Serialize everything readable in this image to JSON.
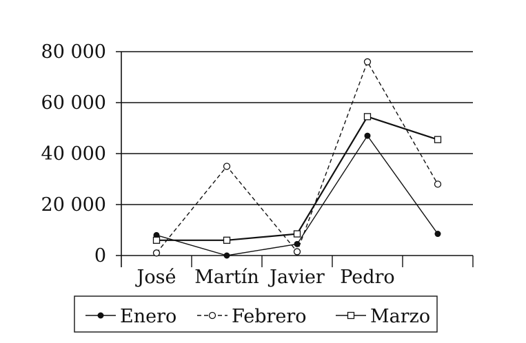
{
  "chart_data": {
    "type": "line",
    "title": "",
    "xlabel": "",
    "ylabel": "",
    "categories": [
      "José",
      "Martín",
      "Javier",
      "Pedro",
      ""
    ],
    "y_ticks": [
      "0",
      "20 000",
      "40 000",
      "60 000",
      "80 000"
    ],
    "ylim": [
      0,
      80000
    ],
    "grid": "horizontal",
    "legend_position": "bottom",
    "series": [
      {
        "name": "Enero",
        "style": "solid",
        "marker": "filled-circle",
        "values": [
          8000,
          0,
          4500,
          47000,
          8500
        ]
      },
      {
        "name": "Febrero",
        "style": "dashed",
        "marker": "open-circle",
        "values": [
          1000,
          35000,
          1500,
          76000,
          28000
        ]
      },
      {
        "name": "Marzo",
        "style": "solid",
        "marker": "open-square",
        "values": [
          6000,
          6000,
          8500,
          54500,
          45500
        ]
      }
    ]
  }
}
